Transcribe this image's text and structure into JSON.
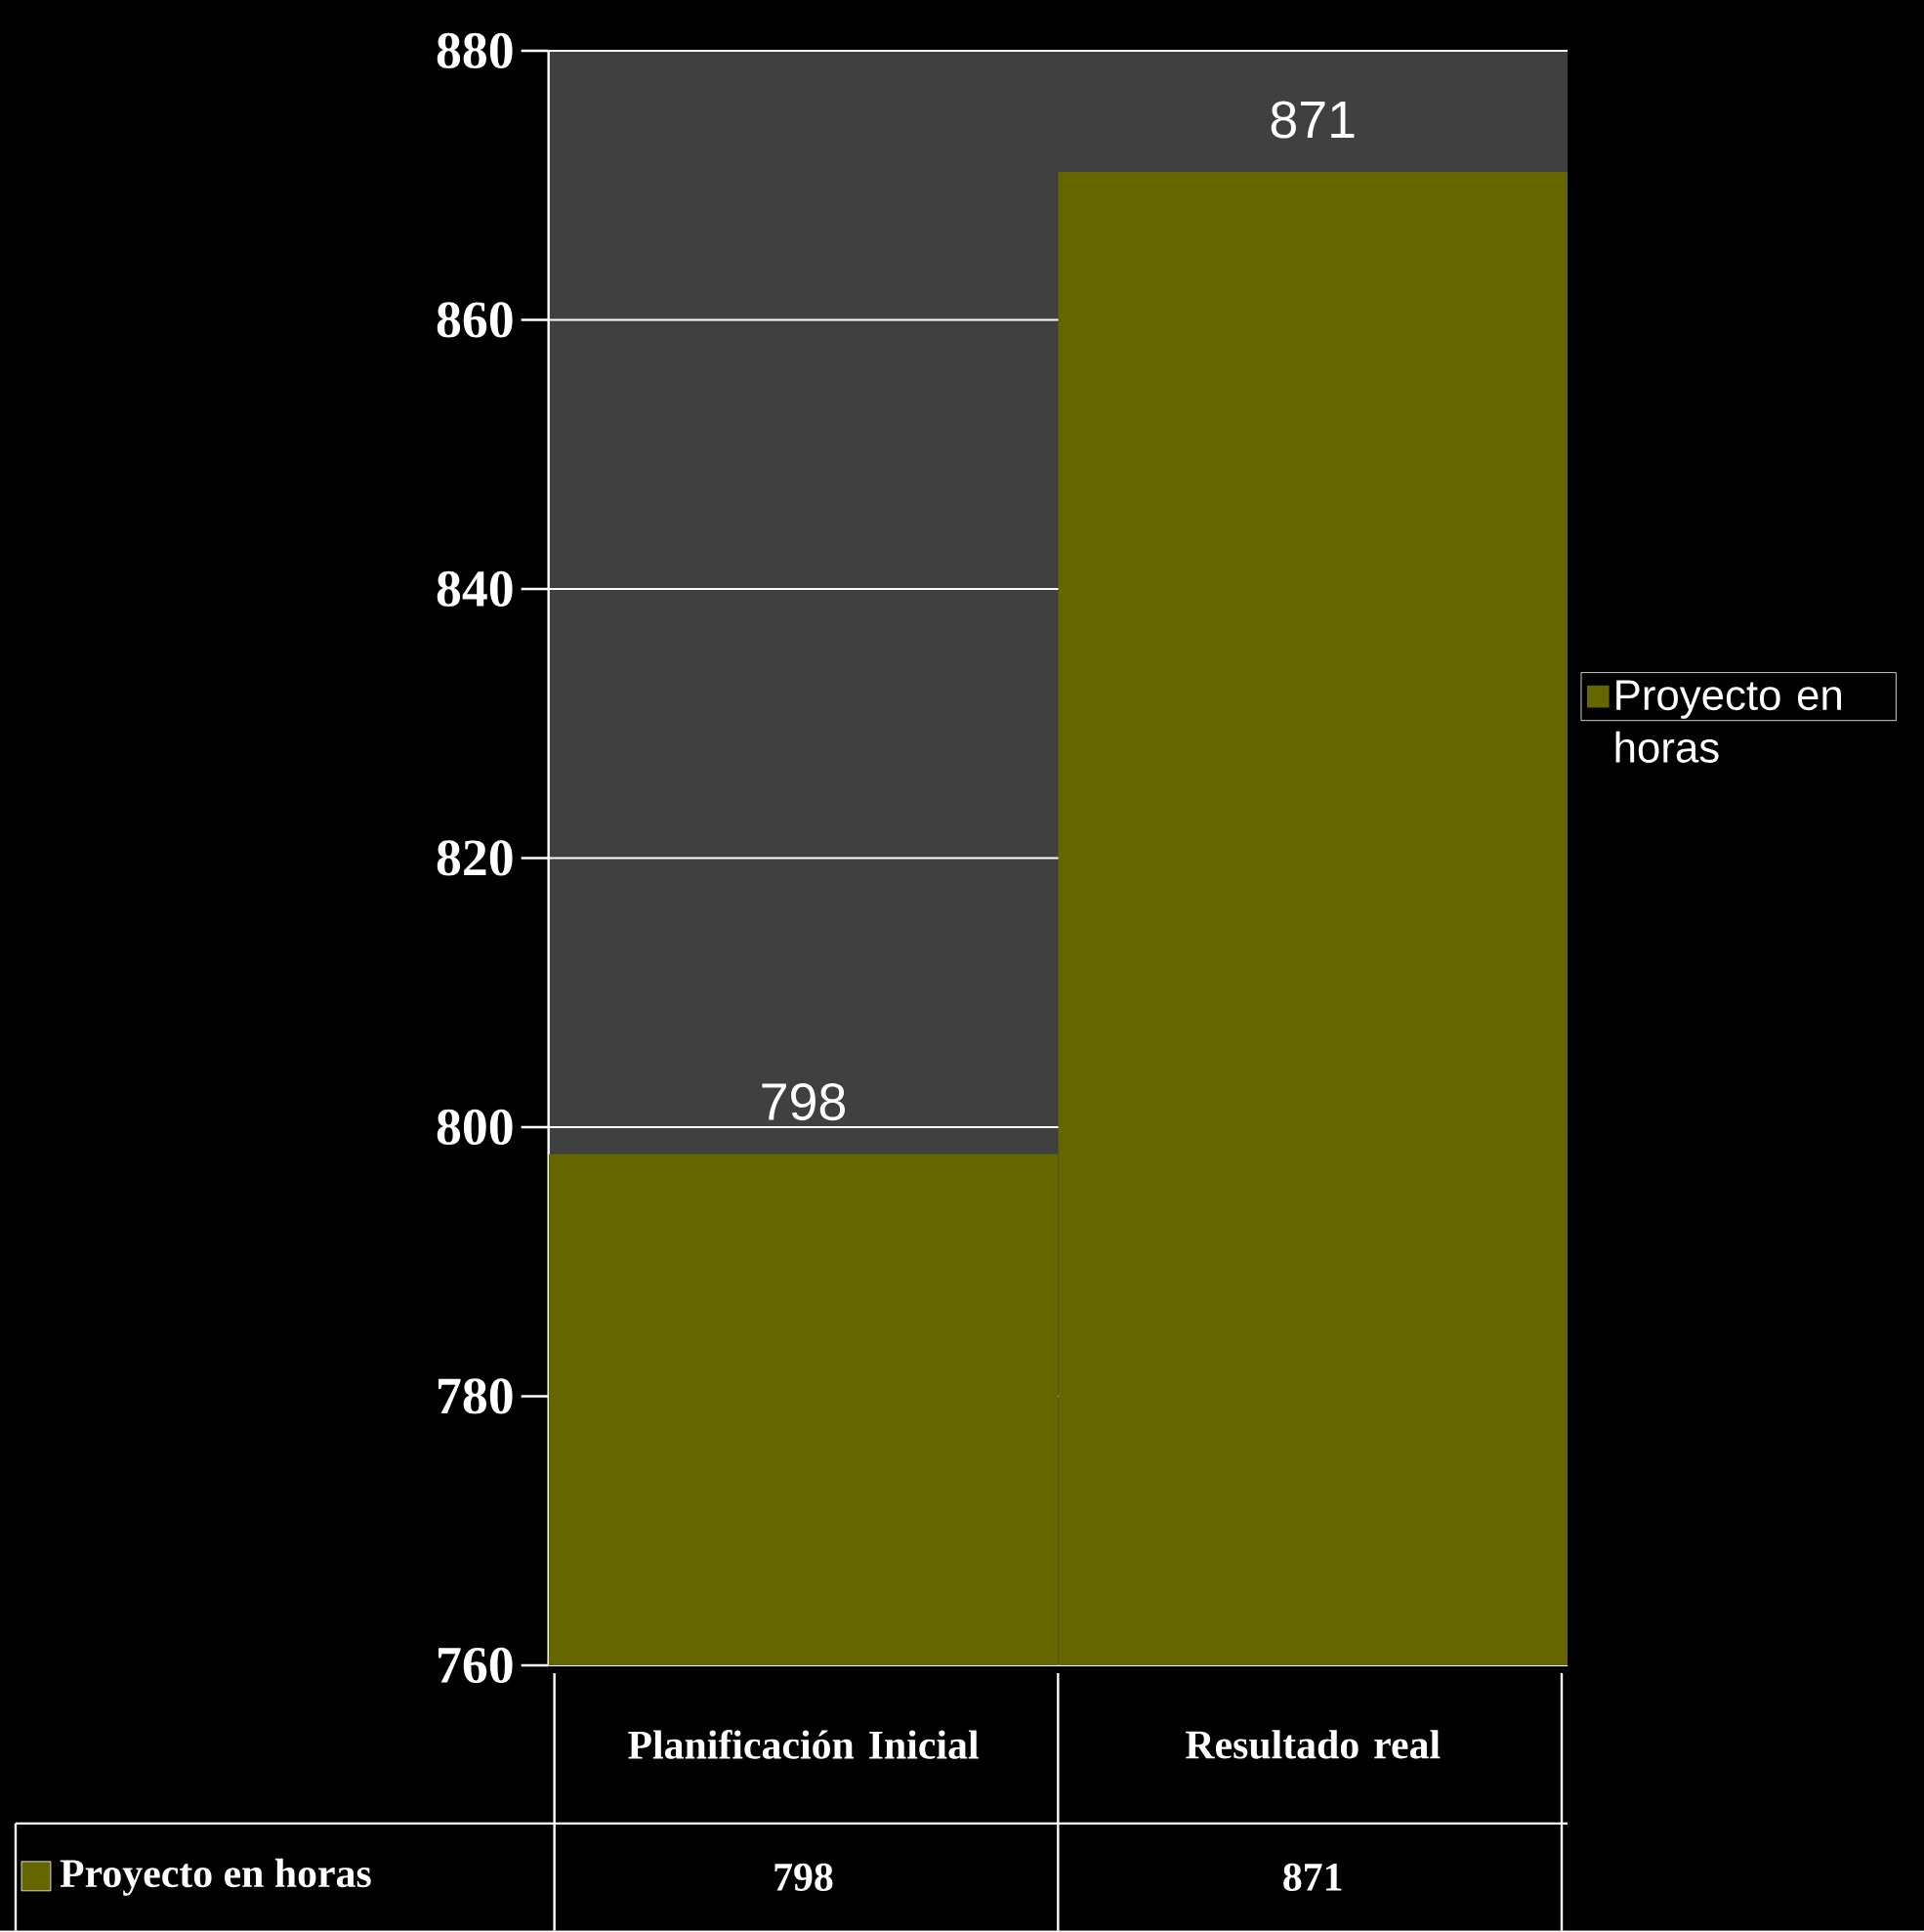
{
  "chart_data": {
    "type": "bar",
    "categories": [
      "Planificación Inicial",
      "Resultado real"
    ],
    "series": [
      {
        "name": "Proyecto en horas",
        "color": "#666600",
        "values": [
          798,
          871
        ],
        "value_labels": [
          "798",
          "871"
        ]
      }
    ],
    "ylim": [
      760,
      880
    ],
    "yticks": [
      760,
      780,
      800,
      820,
      840,
      860,
      880
    ],
    "grid": "y",
    "legend": "right",
    "data_labels": true
  }
}
